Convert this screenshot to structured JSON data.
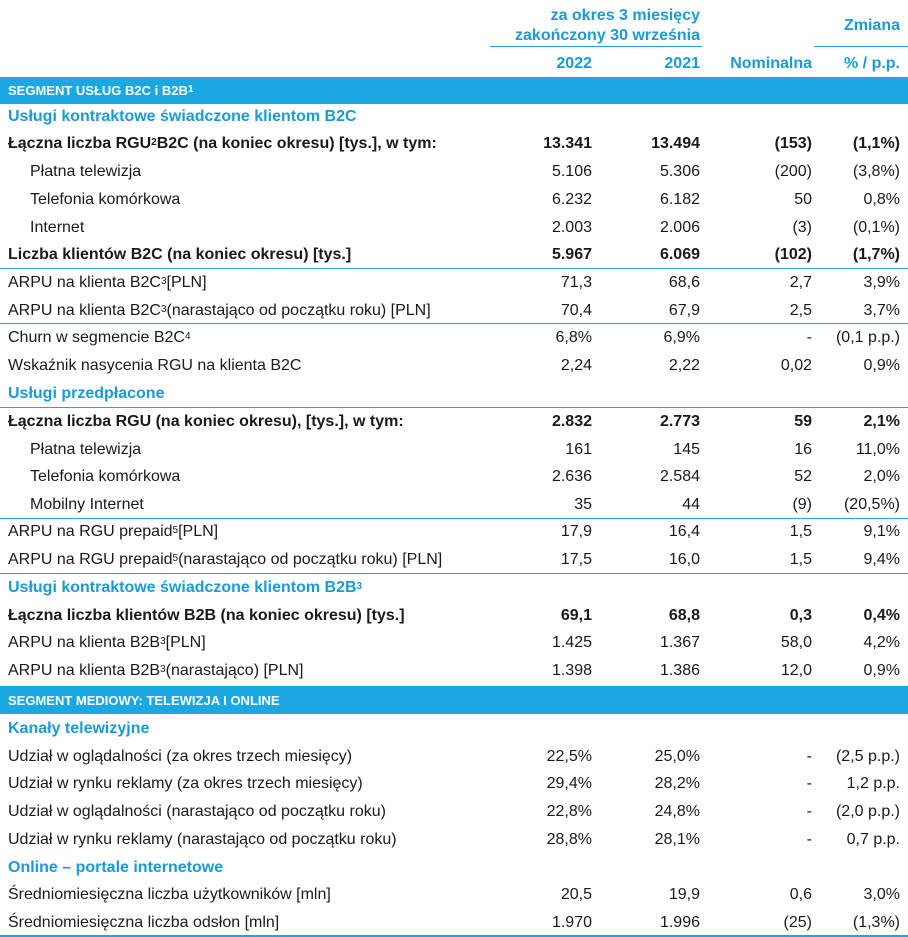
{
  "header": {
    "period_line1": "za okres 3 miesięcy",
    "period_line2": "zakończony 30 września",
    "change": "Zmiana",
    "col_2022": "2022",
    "col_2021": "2021",
    "col_nominal": "Nominalna",
    "col_pct": "% / p.p."
  },
  "rows": [
    {
      "type": "band",
      "label": "SEGMENT USŁUG B2C i B2B",
      "sup": "1"
    },
    {
      "type": "section",
      "label": "Usługi kontraktowe świadczone klientom B2C"
    },
    {
      "type": "data",
      "bold": true,
      "label": "Łączna liczba RGU",
      "sup": "2",
      "suffix": " B2C (na koniec okresu) [tys.], w tym:",
      "v2022": "13.341",
      "v2021": "13.494",
      "nom": "(153)",
      "pct": "(1,1%)"
    },
    {
      "type": "data",
      "indent": true,
      "label": "Płatna telewizja",
      "v2022": "5.106",
      "v2021": "5.306",
      "nom": "(200)",
      "pct": "(3,8%)"
    },
    {
      "type": "data",
      "indent": true,
      "label": "Telefonia komórkowa",
      "v2022": "6.232",
      "v2021": "6.182",
      "nom": "50",
      "pct": "0,8%"
    },
    {
      "type": "data",
      "indent": true,
      "label": "Internet",
      "v2022": "2.003",
      "v2021": "2.006",
      "nom": "(3)",
      "pct": "(0,1%)"
    },
    {
      "type": "data",
      "bold": true,
      "label": "Liczba klientów B2C (na koniec okresu) [tys.]",
      "v2022": "5.967",
      "v2021": "6.069",
      "nom": "(102)",
      "pct": "(1,7%)"
    },
    {
      "type": "data",
      "label": "ARPU na klienta B2C",
      "sup": "3",
      "suffix": " [PLN]",
      "v2022": "71,3",
      "v2021": "68,6",
      "nom": "2,7",
      "pct": "3,9%"
    },
    {
      "type": "data",
      "label": "ARPU na klienta B2C",
      "sup": "3",
      "suffix": " (narastająco od początku roku) [PLN]",
      "v2022": "70,4",
      "v2021": "67,9",
      "nom": "2,5",
      "pct": "3,7%"
    },
    {
      "type": "data",
      "label": "Churn w segmencie B2C",
      "sup": "4",
      "suffix": "",
      "v2022": "6,8%",
      "v2021": "6,9%",
      "nom": "-",
      "pct": "(0,1 p.p.)"
    },
    {
      "type": "data",
      "label": "Wskaźnik nasycenia RGU na klienta B2C",
      "v2022": "2,24",
      "v2021": "2,22",
      "nom": "0,02",
      "pct": "0,9%"
    },
    {
      "type": "section",
      "label": "Usługi przedpłacone"
    },
    {
      "type": "data",
      "bold": true,
      "label": "Łączna liczba RGU (na koniec okresu), [tys.], w tym:",
      "v2022": "2.832",
      "v2021": "2.773",
      "nom": "59",
      "pct": "2,1%"
    },
    {
      "type": "data",
      "indent": true,
      "label": "Płatna telewizja",
      "v2022": "161",
      "v2021": "145",
      "nom": "16",
      "pct": "11,0%"
    },
    {
      "type": "data",
      "indent": true,
      "label": "Telefonia komórkowa",
      "v2022": "2.636",
      "v2021": "2.584",
      "nom": "52",
      "pct": "2,0%"
    },
    {
      "type": "data",
      "indent": true,
      "label": "Mobilny Internet",
      "v2022": "35",
      "v2021": "44",
      "nom": "(9)",
      "pct": "(20,5%)"
    },
    {
      "type": "data",
      "label": "ARPU na RGU prepaid",
      "sup": "5",
      "suffix": " [PLN]",
      "v2022": "17,9",
      "v2021": "16,4",
      "nom": "1,5",
      "pct": "9,1%"
    },
    {
      "type": "data",
      "label": "ARPU na RGU prepaid",
      "sup": "5",
      "suffix": " (narastająco od początku roku) [PLN]",
      "v2022": "17,5",
      "v2021": "16,0",
      "nom": "1,5",
      "pct": "9,4%"
    },
    {
      "type": "section",
      "label": "Usługi kontraktowe świadczone klientom B2B",
      "sup": "3"
    },
    {
      "type": "data",
      "bold": true,
      "label": "Łączna liczba klientów B2B (na koniec okresu) [tys.]",
      "v2022": "69,1",
      "v2021": "68,8",
      "nom": "0,3",
      "pct": "0,4%"
    },
    {
      "type": "data",
      "label": "ARPU na klienta B2B",
      "sup": "3",
      "suffix": " [PLN]",
      "v2022": "1.425",
      "v2021": "1.367",
      "nom": "58,0",
      "pct": "4,2%"
    },
    {
      "type": "data",
      "label": "ARPU na klienta B2B",
      "sup": "3",
      "suffix": " (narastająco) [PLN]",
      "v2022": "1.398",
      "v2021": "1.386",
      "nom": "12,0",
      "pct": "0,9%"
    },
    {
      "type": "band",
      "label": "SEGMENT MEDIOWY: TELEWIZJA I ONLINE"
    },
    {
      "type": "section",
      "label": "Kanały telewizyjne"
    },
    {
      "type": "data",
      "label": "Udział w oglądalności (za okres trzech miesięcy)",
      "v2022": "22,5%",
      "v2021": "25,0%",
      "nom": "-",
      "pct": "(2,5 p.p.)"
    },
    {
      "type": "data",
      "label": "Udział w rynku reklamy (za okres trzech miesięcy)",
      "v2022": "29,4%",
      "v2021": "28,2%",
      "nom": "-",
      "pct": "1,2 p.p."
    },
    {
      "type": "data",
      "label": "Udział w oglądalności (narastająco od początku roku)",
      "v2022": "22,8%",
      "v2021": "24,8%",
      "nom": "-",
      "pct": "(2,0 p.p.)"
    },
    {
      "type": "data",
      "label": "Udział w rynku reklamy (narastająco od początku roku)",
      "v2022": "28,8%",
      "v2021": "28,1%",
      "nom": "-",
      "pct": "0,7 p.p."
    },
    {
      "type": "section",
      "label": "Online – portale internetowe"
    },
    {
      "type": "data",
      "label": "Średniomiesięczna liczba użytkowników [mln]",
      "v2022": "20,5",
      "v2021": "19,9",
      "nom": "0,6",
      "pct": "3,0%"
    },
    {
      "type": "data",
      "label": "Średniomiesięczna liczba odsłon [mln]",
      "v2022": "1.970",
      "v2021": "1.996",
      "nom": "(25)",
      "pct": "(1,3%)"
    }
  ]
}
